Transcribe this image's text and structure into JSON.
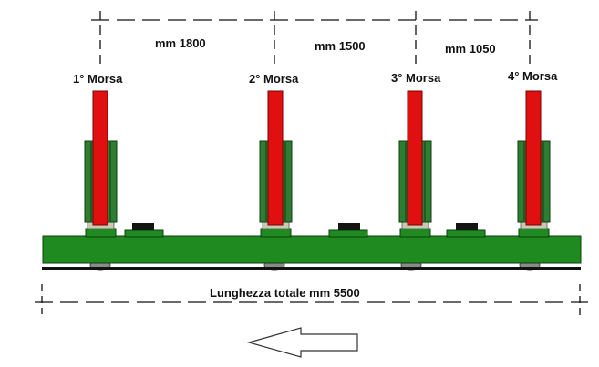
{
  "spacings": {
    "spacing_1": "mm 1800",
    "spacing_2": "mm 1500",
    "spacing_3": "mm 1050"
  },
  "clamps": [
    {
      "label": "1° Morsa"
    },
    {
      "label": "2° Morsa"
    },
    {
      "label": "3° Morsa"
    },
    {
      "label": "4° Morsa"
    }
  ],
  "total_length": "Lunghezza totale mm 5500",
  "direction_arrow": {
    "direction": "left",
    "icon": "left-arrow-icon"
  },
  "colors": {
    "beam_green": "#1f8a1f",
    "beam_outline": "#0d3d0d",
    "clamp_body_green": "#2e7d32",
    "clamp_red": "#e01010",
    "dimension_line": "#111111",
    "pad_black": "#141414",
    "wheel_grey": "#8a8a8a",
    "label_text": "#111111"
  }
}
